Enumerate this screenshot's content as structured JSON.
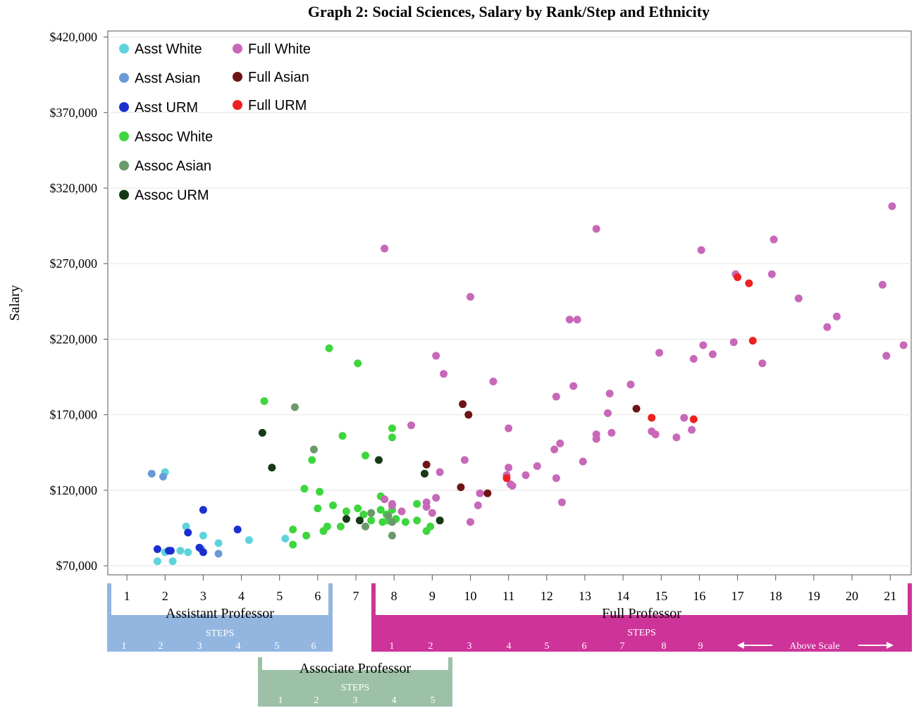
{
  "chart_data": {
    "type": "scatter",
    "title": "Graph 2: Social Sciences, Salary by Rank/Step and Ethnicity",
    "ylabel": "Salary",
    "xlabel": "",
    "xlim": [
      0.5,
      21.55
    ],
    "ylim": [
      64000,
      424000
    ],
    "x_ticks": [
      "1",
      "2",
      "3",
      "4",
      "5",
      "6",
      "7",
      "8",
      "9",
      "10",
      "11",
      "12",
      "13",
      "14",
      "15",
      "16",
      "17",
      "18",
      "19",
      "20",
      "21"
    ],
    "y_ticks": [
      {
        "value": 70000,
        "label": "$70,000"
      },
      {
        "value": 120000,
        "label": "$120,000"
      },
      {
        "value": 170000,
        "label": "$170,000"
      },
      {
        "value": 220000,
        "label": "$220,000"
      },
      {
        "value": 270000,
        "label": "$270,000"
      },
      {
        "value": 320000,
        "label": "$320,000"
      },
      {
        "value": 370000,
        "label": "$370,000"
      },
      {
        "value": 420000,
        "label": "$420,000"
      }
    ],
    "grid": "horizontal",
    "legend_position": "top-left",
    "series": [
      {
        "name": "Asst White",
        "color": "#5fd3dc",
        "points": [
          [
            1.8,
            73000
          ],
          [
            2.0,
            79000
          ],
          [
            2.2,
            73000
          ],
          [
            2.4,
            80000
          ],
          [
            2.6,
            79000
          ],
          [
            2.55,
            96000
          ],
          [
            3.0,
            90000
          ],
          [
            3.4,
            85000
          ],
          [
            4.2,
            87000
          ],
          [
            2.0,
            132000
          ],
          [
            5.15,
            88000
          ]
        ]
      },
      {
        "name": "Asst Asian",
        "color": "#6a9ad8",
        "points": [
          [
            1.65,
            131000
          ],
          [
            1.95,
            129000
          ],
          [
            3.4,
            78000
          ],
          [
            2.95,
            81000
          ]
        ]
      },
      {
        "name": "Asst URM",
        "color": "#1b2fd0",
        "points": [
          [
            1.8,
            81000
          ],
          [
            2.1,
            80000
          ],
          [
            2.15,
            80000
          ],
          [
            2.6,
            92000
          ],
          [
            2.9,
            82000
          ],
          [
            3.0,
            79000
          ],
          [
            3.0,
            107000
          ],
          [
            3.9,
            94000
          ]
        ]
      },
      {
        "name": "Assoc White",
        "color": "#3dd63d",
        "points": [
          [
            4.6,
            179000
          ],
          [
            5.35,
            84000
          ],
          [
            5.35,
            94000
          ],
          [
            5.7,
            90000
          ],
          [
            5.65,
            121000
          ],
          [
            5.85,
            140000
          ],
          [
            6.0,
            108000
          ],
          [
            6.05,
            119000
          ],
          [
            6.15,
            93000
          ],
          [
            6.25,
            96000
          ],
          [
            6.3,
            214000
          ],
          [
            6.4,
            110000
          ],
          [
            6.6,
            96000
          ],
          [
            6.65,
            156000
          ],
          [
            6.75,
            106000
          ],
          [
            7.05,
            108000
          ],
          [
            7.05,
            204000
          ],
          [
            7.2,
            104000
          ],
          [
            7.25,
            143000
          ],
          [
            7.4,
            100000
          ],
          [
            7.65,
            107000
          ],
          [
            7.65,
            116000
          ],
          [
            7.7,
            99000
          ],
          [
            7.8,
            104000
          ],
          [
            7.85,
            100000
          ],
          [
            7.95,
            155000
          ],
          [
            7.95,
            161000
          ],
          [
            7.95,
            107000
          ],
          [
            8.05,
            101000
          ],
          [
            8.3,
            99000
          ],
          [
            8.6,
            100000
          ],
          [
            8.6,
            111000
          ],
          [
            8.85,
            93000
          ],
          [
            8.95,
            96000
          ]
        ]
      },
      {
        "name": "Assoc Asian",
        "color": "#6a9a6a",
        "points": [
          [
            5.4,
            175000
          ],
          [
            5.9,
            147000
          ],
          [
            7.25,
            96000
          ],
          [
            7.4,
            105000
          ],
          [
            7.85,
            103000
          ],
          [
            7.95,
            99000
          ],
          [
            7.95,
            90000
          ]
        ]
      },
      {
        "name": "Assoc URM",
        "color": "#163a16",
        "points": [
          [
            4.55,
            158000
          ],
          [
            4.8,
            135000
          ],
          [
            6.75,
            101000
          ],
          [
            7.1,
            100000
          ],
          [
            7.6,
            140000
          ],
          [
            8.8,
            131000
          ],
          [
            9.2,
            100000
          ]
        ]
      },
      {
        "name": "Full White",
        "color": "#c868b8",
        "points": [
          [
            7.75,
            280000
          ],
          [
            7.75,
            114000
          ],
          [
            7.95,
            110000
          ],
          [
            7.95,
            111000
          ],
          [
            8.2,
            106000
          ],
          [
            8.45,
            163000
          ],
          [
            8.85,
            112000
          ],
          [
            8.85,
            109000
          ],
          [
            9.0,
            105000
          ],
          [
            9.1,
            115000
          ],
          [
            9.1,
            209000
          ],
          [
            9.2,
            132000
          ],
          [
            9.3,
            197000
          ],
          [
            9.85,
            140000
          ],
          [
            10.0,
            99000
          ],
          [
            10.0,
            248000
          ],
          [
            10.2,
            110000
          ],
          [
            10.25,
            118000
          ],
          [
            10.6,
            192000
          ],
          [
            10.95,
            130000
          ],
          [
            11.0,
            135000
          ],
          [
            11.0,
            161000
          ],
          [
            11.05,
            124000
          ],
          [
            11.1,
            123000
          ],
          [
            11.45,
            130000
          ],
          [
            11.75,
            136000
          ],
          [
            12.2,
            147000
          ],
          [
            12.25,
            182000
          ],
          [
            12.25,
            128000
          ],
          [
            12.35,
            151000
          ],
          [
            12.4,
            112000
          ],
          [
            12.6,
            233000
          ],
          [
            12.7,
            189000
          ],
          [
            12.8,
            233000
          ],
          [
            12.95,
            139000
          ],
          [
            13.3,
            154000
          ],
          [
            13.3,
            157000
          ],
          [
            13.3,
            293000
          ],
          [
            13.6,
            171000
          ],
          [
            13.65,
            184000
          ],
          [
            13.7,
            158000
          ],
          [
            14.2,
            190000
          ],
          [
            14.75,
            159000
          ],
          [
            14.85,
            157000
          ],
          [
            14.95,
            211000
          ],
          [
            15.4,
            155000
          ],
          [
            15.6,
            168000
          ],
          [
            15.8,
            160000
          ],
          [
            15.85,
            207000
          ],
          [
            16.05,
            279000
          ],
          [
            16.1,
            216000
          ],
          [
            16.35,
            210000
          ],
          [
            16.9,
            218000
          ],
          [
            16.95,
            263000
          ],
          [
            17.65,
            204000
          ],
          [
            17.9,
            263000
          ],
          [
            17.95,
            286000
          ],
          [
            18.6,
            247000
          ],
          [
            19.35,
            228000
          ],
          [
            19.6,
            235000
          ],
          [
            20.8,
            256000
          ],
          [
            20.9,
            209000
          ],
          [
            21.05,
            308000
          ],
          [
            21.35,
            216000
          ]
        ]
      },
      {
        "name": "Full Asian",
        "color": "#6e1414",
        "points": [
          [
            8.85,
            137000
          ],
          [
            9.75,
            122000
          ],
          [
            9.8,
            177000
          ],
          [
            9.95,
            170000
          ],
          [
            10.45,
            118000
          ],
          [
            14.35,
            174000
          ]
        ]
      },
      {
        "name": "Full URM",
        "color": "#ee2020",
        "points": [
          [
            10.95,
            128000
          ],
          [
            14.75,
            168000
          ],
          [
            15.85,
            167000
          ],
          [
            17.0,
            261000
          ],
          [
            17.3,
            257000
          ],
          [
            17.4,
            219000
          ]
        ]
      }
    ],
    "rank_scales": [
      {
        "label": "Assistant Professor",
        "steps_label": "STEPS",
        "steps": [
          "1",
          "2",
          "3",
          "4",
          "5",
          "6"
        ],
        "color": "#93b6e1"
      },
      {
        "label": "Associate Professor",
        "steps_label": "STEPS",
        "steps": [
          "1",
          "2",
          "3",
          "4",
          "5"
        ],
        "color": "#9dc1a6"
      },
      {
        "label": "Full Professor",
        "steps_label": "STEPS",
        "steps": [
          "1",
          "2",
          "3",
          "4",
          "5",
          "6",
          "7",
          "8",
          "9"
        ],
        "above_scale": "Above Scale",
        "color": "#ce3399"
      }
    ]
  }
}
